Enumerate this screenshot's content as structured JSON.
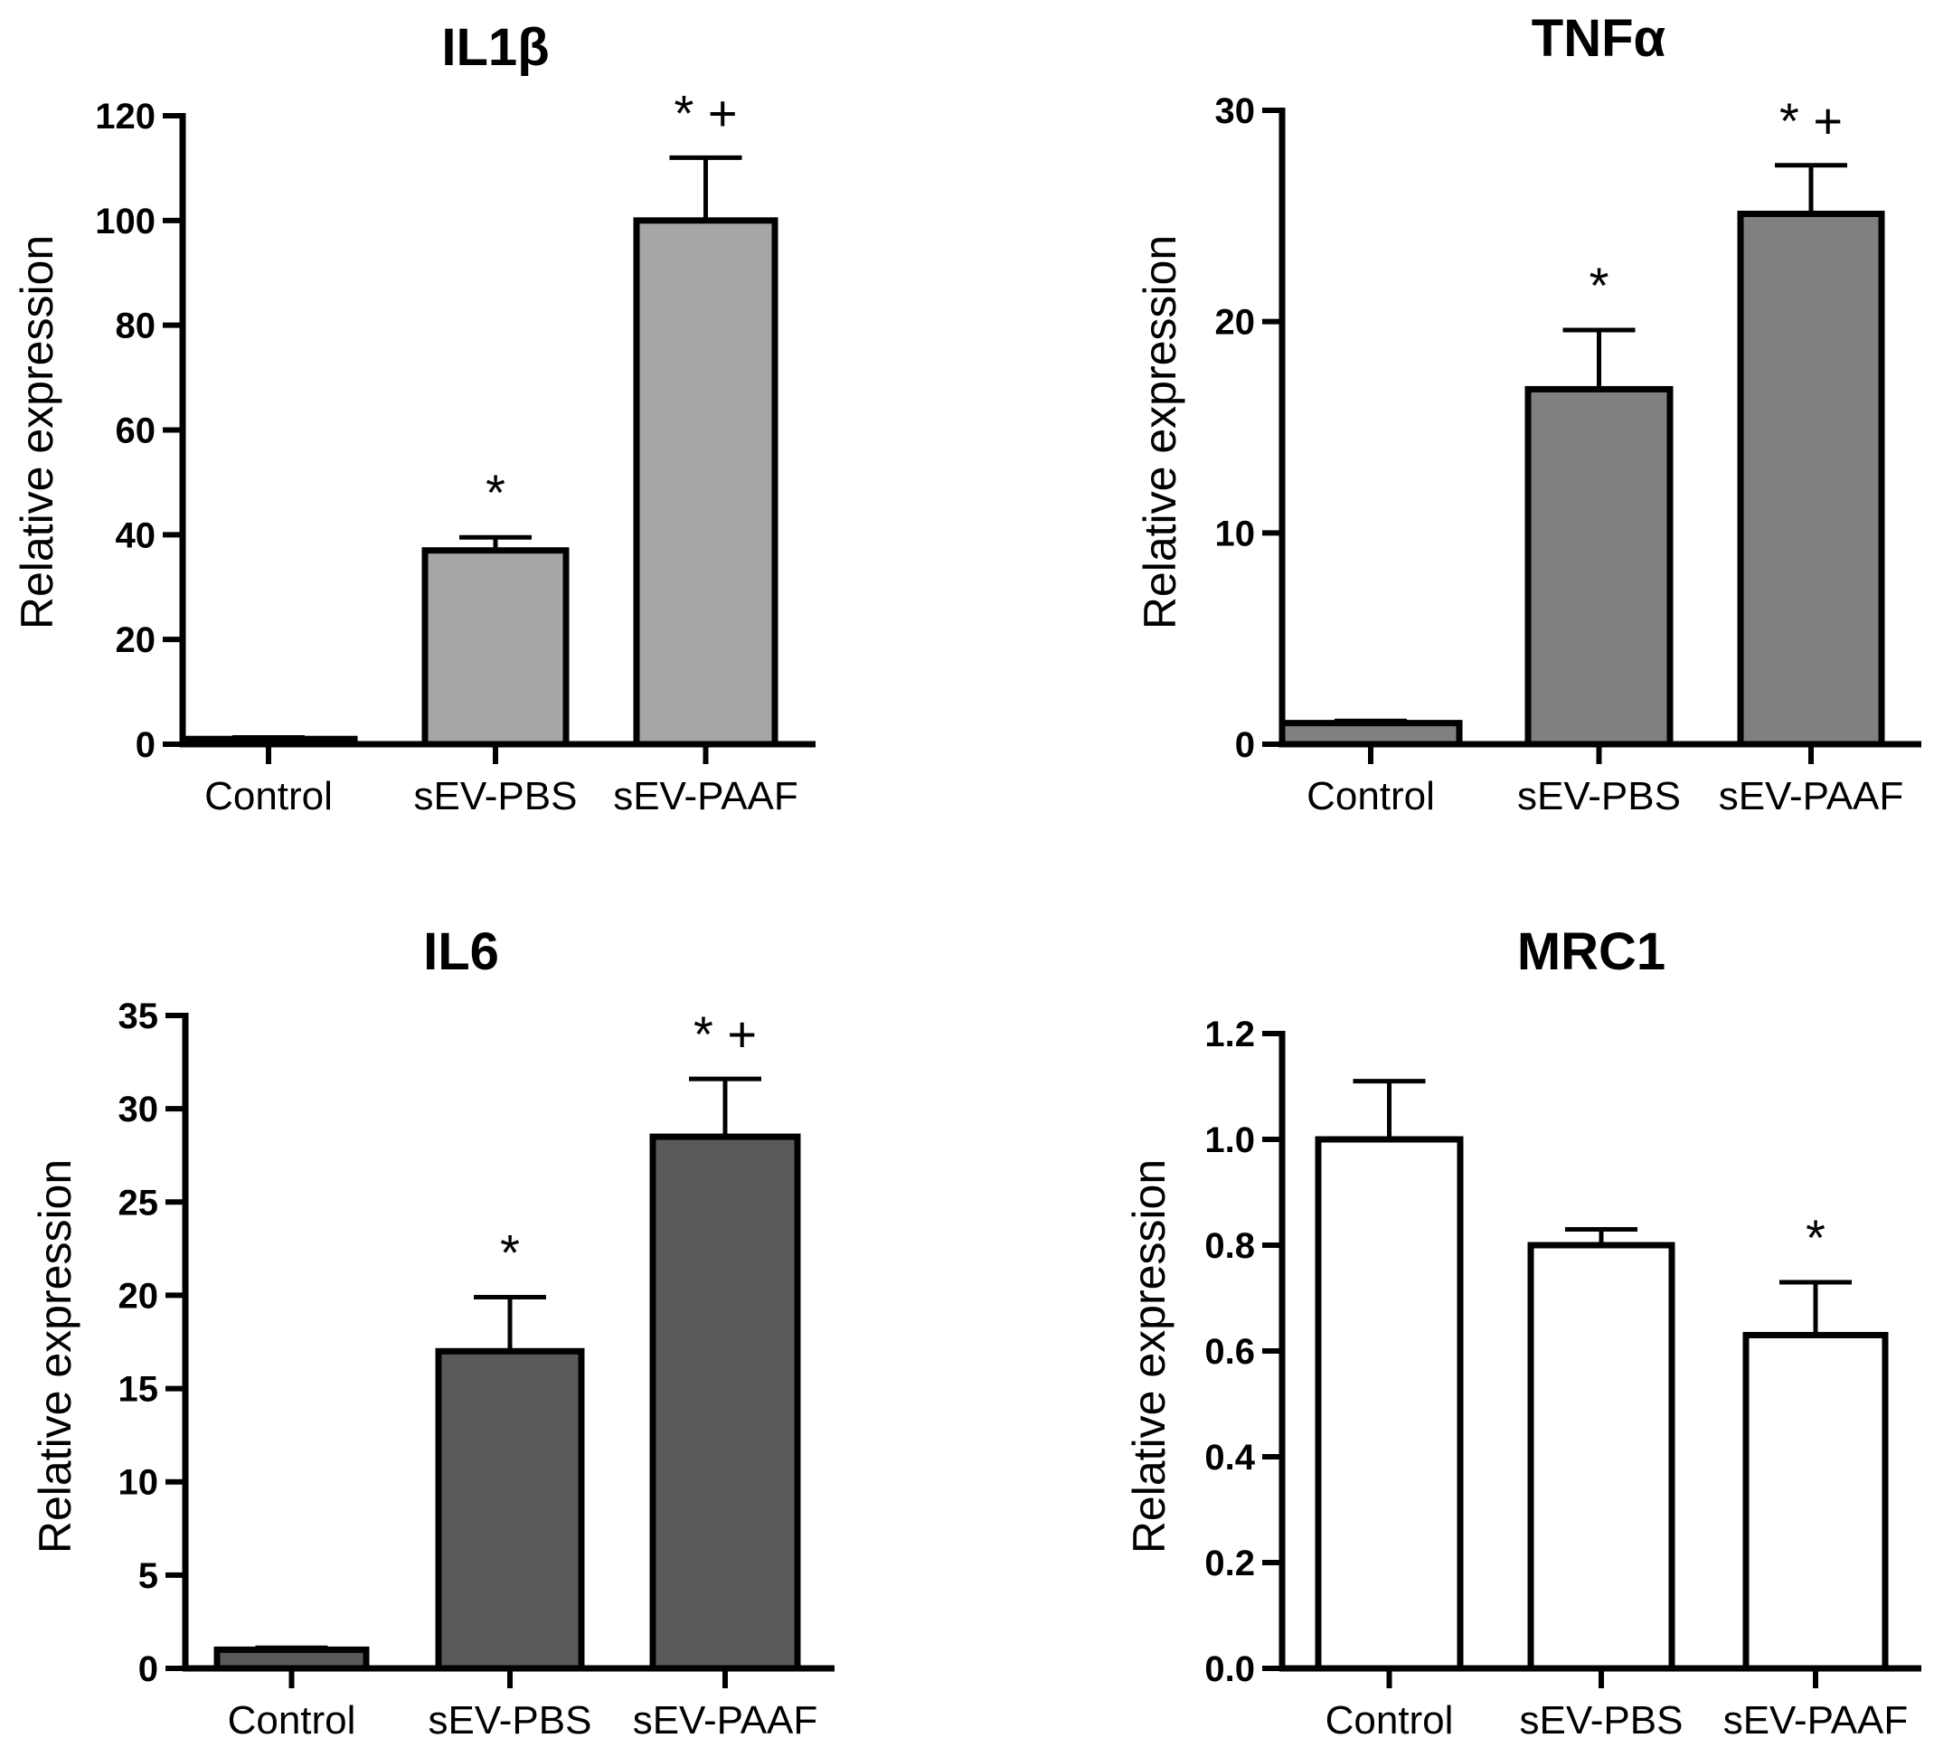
{
  "chart_data": [
    {
      "type": "bar",
      "title": "IL1β",
      "xlabel": "",
      "ylabel": "Relative expression",
      "categories": [
        "Control",
        "sEV-PBS",
        "sEV-PAAF"
      ],
      "values": [
        1,
        37,
        100
      ],
      "errors": [
        0.3,
        2.5,
        12
      ],
      "annotations": [
        "",
        "*",
        "* +"
      ],
      "ylim": [
        0,
        120
      ],
      "yticks": [
        0,
        20,
        40,
        60,
        80,
        100,
        120
      ],
      "ytick_labels": [
        "0",
        "20",
        "40",
        "60",
        "80",
        "100",
        "120"
      ],
      "bar_color": "#a6a6a6"
    },
    {
      "type": "bar",
      "title": "TNFα",
      "xlabel": "",
      "ylabel": "Relative expression",
      "categories": [
        "Control",
        "sEV-PBS",
        "sEV-PAAF"
      ],
      "values": [
        1,
        16.8,
        25.1
      ],
      "errors": [
        0.1,
        2.8,
        2.3
      ],
      "annotations": [
        "",
        "*",
        "* +"
      ],
      "ylim": [
        0,
        30
      ],
      "yticks": [
        0,
        10,
        20,
        30
      ],
      "ytick_labels": [
        "0",
        "10",
        "20",
        "30"
      ],
      "bar_color": "#808080"
    },
    {
      "type": "bar",
      "title": "IL6",
      "xlabel": "",
      "ylabel": "Relative expression",
      "categories": [
        "Control",
        "sEV-PBS",
        "sEV-PAAF"
      ],
      "values": [
        1,
        17,
        28.5
      ],
      "errors": [
        0.1,
        2.9,
        3.1
      ],
      "annotations": [
        "",
        "*",
        "* +"
      ],
      "ylim": [
        0,
        35
      ],
      "yticks": [
        0,
        5,
        10,
        15,
        20,
        25,
        30,
        35
      ],
      "ytick_labels": [
        "0",
        "5",
        "10",
        "15",
        "20",
        "25",
        "30",
        "35"
      ],
      "bar_color": "#5a5a5a"
    },
    {
      "type": "bar",
      "title": "MRC1",
      "xlabel": "",
      "ylabel": "Relative expression",
      "categories": [
        "Control",
        "sEV-PBS",
        "sEV-PAAF"
      ],
      "values": [
        1.0,
        0.8,
        0.63
      ],
      "errors": [
        0.11,
        0.03,
        0.1
      ],
      "annotations": [
        "",
        "",
        "*"
      ],
      "ylim": [
        0,
        1.2
      ],
      "yticks": [
        0,
        0.2,
        0.4,
        0.6,
        0.8,
        1.0,
        1.2
      ],
      "ytick_labels": [
        "0.0",
        "0.2",
        "0.4",
        "0.6",
        "0.8",
        "1.0",
        "1.2"
      ],
      "bar_color": "#ffffff"
    }
  ]
}
